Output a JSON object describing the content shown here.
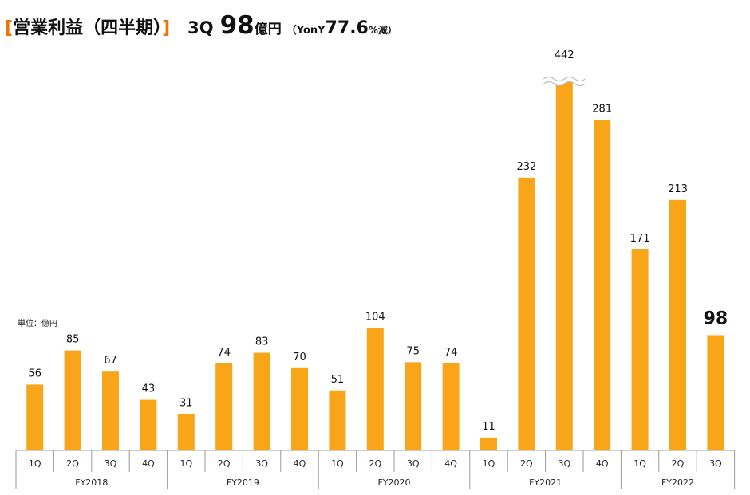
{
  "header": {
    "bracket_open": "[",
    "title": "営業利益（四半期）",
    "bracket_close": "]",
    "quarter": "3Q",
    "value": "98",
    "value_unit": "億円",
    "yoy_open": "（YonY",
    "yoy_value": "77.6",
    "yoy_unit": "%減）"
  },
  "unit_note": "単位：億円",
  "chart_data": {
    "type": "bar",
    "ylabel": "",
    "xlabel": "",
    "unit": "億円",
    "ylim": [
      0,
      281
    ],
    "grid": false,
    "bar_color": "#f9a51a",
    "axis_break": {
      "category_index": 14,
      "value": 442
    },
    "highlight": {
      "category_index": 18,
      "value": 98
    },
    "groups": [
      {
        "label": "FY2018",
        "quarters": [
          "1Q",
          "2Q",
          "3Q",
          "4Q"
        ],
        "values": [
          56,
          85,
          67,
          43
        ]
      },
      {
        "label": "FY2019",
        "quarters": [
          "1Q",
          "2Q",
          "3Q",
          "4Q"
        ],
        "values": [
          31,
          74,
          83,
          70
        ]
      },
      {
        "label": "FY2020",
        "quarters": [
          "1Q",
          "2Q",
          "3Q",
          "4Q"
        ],
        "values": [
          51,
          104,
          75,
          74
        ]
      },
      {
        "label": "FY2021",
        "quarters": [
          "1Q",
          "2Q",
          "3Q",
          "4Q"
        ],
        "values": [
          11,
          232,
          442,
          281
        ]
      },
      {
        "label": "FY2022",
        "quarters": [
          "1Q",
          "2Q",
          "3Q"
        ],
        "values": [
          171,
          213,
          98
        ]
      }
    ]
  }
}
